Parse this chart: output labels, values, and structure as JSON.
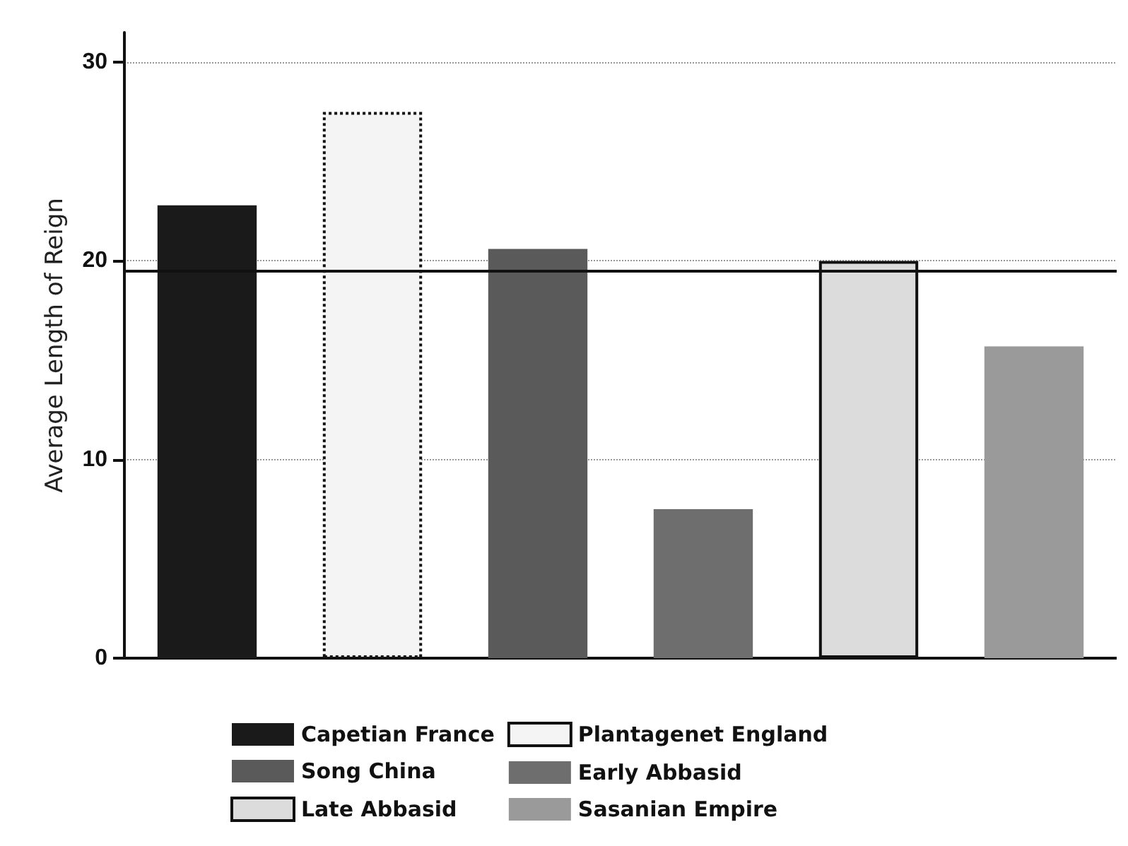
{
  "chart_data": {
    "type": "bar",
    "ylabel": "Average Length of Reign",
    "categories": [
      null,
      null,
      null,
      null,
      null,
      null
    ],
    "series": [
      {
        "name": "Capetian France",
        "color": "#1a1a1a",
        "values": [
          22.8,
          null,
          null,
          null,
          null,
          null
        ]
      },
      {
        "name": "Song China",
        "color": "#5a5a5a",
        "values": [
          null,
          null,
          20.6,
          null,
          null,
          null
        ]
      },
      {
        "name": "Late Abbasid",
        "color": "#dcdcdc",
        "values": [
          null,
          null,
          null,
          null,
          20.0,
          null
        ]
      },
      {
        "name": "Plantagenet England",
        "color": "#f4f4f4",
        "values": [
          null,
          27.5,
          null,
          null,
          null,
          null
        ]
      },
      {
        "name": "Early Abbasid",
        "color": "#6e6e6e",
        "values": [
          null,
          null,
          null,
          7.5,
          null,
          null
        ]
      },
      {
        "name": "Sasanian Empire",
        "color": "#9a9a9a",
        "values": [
          null,
          null,
          null,
          null,
          null,
          15.7
        ]
      }
    ],
    "ylim": [
      0,
      31.5
    ],
    "yticks": [
      0,
      10,
      20,
      30
    ],
    "grid": "y",
    "legend": "bottom",
    "tick_labels": "y",
    "ref_lines": [
      {
        "axis": "y",
        "value": 19.5,
        "color": "#111111"
      }
    ]
  }
}
